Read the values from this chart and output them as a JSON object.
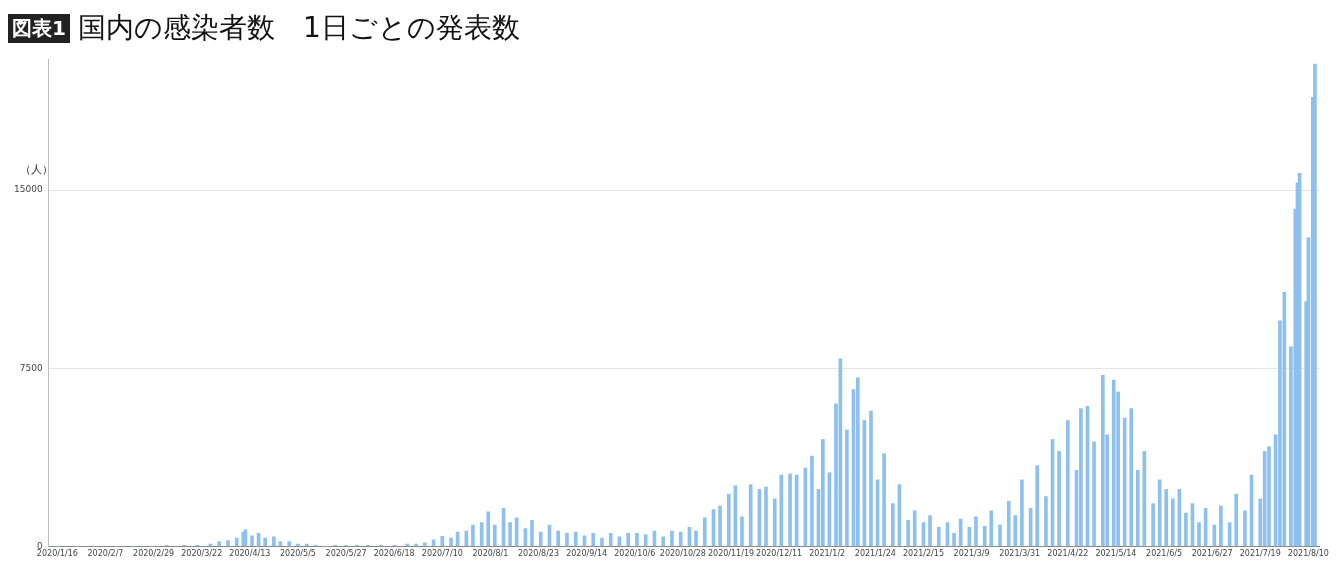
{
  "chart_data": {
    "type": "bar",
    "title": "国内の感染者数　1日ごとの発表数",
    "annotations": [
      "図表1"
    ],
    "ylabel": "（人）",
    "color": "#8ec0ef",
    "grid": "y",
    "xlim": [
      "2020-01-12",
      "2021-08-15"
    ],
    "xticks": [
      {
        "value": "2020-01-16",
        "label": "2020/1/16"
      },
      {
        "value": "2020-02-07",
        "label": "2020/2/7"
      },
      {
        "value": "2020-02-29",
        "label": "2020/2/29"
      },
      {
        "value": "2020-03-22",
        "label": "2020/3/22"
      },
      {
        "value": "2020-04-13",
        "label": "2020/4/13"
      },
      {
        "value": "2020-05-05",
        "label": "2020/5/5"
      },
      {
        "value": "2020-05-27",
        "label": "2020/5/27"
      },
      {
        "value": "2020-06-18",
        "label": "2020/6/18"
      },
      {
        "value": "2020-07-10",
        "label": "2020/7/10"
      },
      {
        "value": "2020-08-01",
        "label": "2020/8/1"
      },
      {
        "value": "2020-08-23",
        "label": "2020/8/23"
      },
      {
        "value": "2020-09-14",
        "label": "2020/9/14"
      },
      {
        "value": "2020-10-06",
        "label": "2020/10/6"
      },
      {
        "value": "2020-10-28",
        "label": "2020/10/28"
      },
      {
        "value": "2020-11-19",
        "label": "2020/11/19"
      },
      {
        "value": "2020-12-11",
        "label": "2020/12/11"
      },
      {
        "value": "2021-01-02",
        "label": "2021/1/2"
      },
      {
        "value": "2021-01-24",
        "label": "2021/1/24"
      },
      {
        "value": "2021-02-15",
        "label": "2021/2/15"
      },
      {
        "value": "2021-03-09",
        "label": "2021/3/9"
      },
      {
        "value": "2021-03-31",
        "label": "2021/3/31"
      },
      {
        "value": "2021-04-22",
        "label": "2021/4/22"
      },
      {
        "value": "2021-05-14",
        "label": "2021/5/14"
      },
      {
        "value": "2021-06-05",
        "label": "2021/6/5"
      },
      {
        "value": "2021-06-27",
        "label": "2021/6/27"
      },
      {
        "value": "2021-07-19",
        "label": "2021/7/19"
      },
      {
        "value": "2021-08-10",
        "label": "2021/8/10"
      }
    ],
    "ylim": [
      0,
      20500
    ],
    "yticks": [
      0,
      7500,
      15000
    ],
    "x": [
      "2020-01-16",
      "2020-01-25",
      "2020-02-03",
      "2020-02-12",
      "2020-02-20",
      "2020-02-28",
      "2020-03-06",
      "2020-03-14",
      "2020-03-20",
      "2020-03-26",
      "2020-03-30",
      "2020-04-03",
      "2020-04-07",
      "2020-04-10",
      "2020-04-11",
      "2020-04-14",
      "2020-04-17",
      "2020-04-20",
      "2020-04-24",
      "2020-04-27",
      "2020-05-01",
      "2020-05-05",
      "2020-05-09",
      "2020-05-13",
      "2020-05-18",
      "2020-05-22",
      "2020-05-27",
      "2020-06-01",
      "2020-06-06",
      "2020-06-12",
      "2020-06-18",
      "2020-06-24",
      "2020-06-28",
      "2020-07-02",
      "2020-07-06",
      "2020-07-10",
      "2020-07-14",
      "2020-07-17",
      "2020-07-21",
      "2020-07-24",
      "2020-07-28",
      "2020-07-31",
      "2020-08-03",
      "2020-08-07",
      "2020-08-10",
      "2020-08-13",
      "2020-08-17",
      "2020-08-20",
      "2020-08-24",
      "2020-08-28",
      "2020-09-01",
      "2020-09-05",
      "2020-09-09",
      "2020-09-13",
      "2020-09-17",
      "2020-09-21",
      "2020-09-25",
      "2020-09-29",
      "2020-10-03",
      "2020-10-07",
      "2020-10-11",
      "2020-10-15",
      "2020-10-19",
      "2020-10-23",
      "2020-10-27",
      "2020-10-31",
      "2020-11-03",
      "2020-11-07",
      "2020-11-11",
      "2020-11-14",
      "2020-11-18",
      "2020-11-21",
      "2020-11-24",
      "2020-11-28",
      "2020-12-02",
      "2020-12-05",
      "2020-12-09",
      "2020-12-12",
      "2020-12-16",
      "2020-12-19",
      "2020-12-23",
      "2020-12-26",
      "2020-12-29",
      "2020-12-31",
      "2021-01-03",
      "2021-01-06",
      "2021-01-08",
      "2021-01-11",
      "2021-01-14",
      "2021-01-16",
      "2021-01-19",
      "2021-01-22",
      "2021-01-25",
      "2021-01-28",
      "2021-02-01",
      "2021-02-04",
      "2021-02-08",
      "2021-02-11",
      "2021-02-15",
      "2021-02-18",
      "2021-02-22",
      "2021-02-26",
      "2021-03-01",
      "2021-03-04",
      "2021-03-08",
      "2021-03-11",
      "2021-03-15",
      "2021-03-18",
      "2021-03-22",
      "2021-03-26",
      "2021-03-29",
      "2021-04-01",
      "2021-04-05",
      "2021-04-08",
      "2021-04-12",
      "2021-04-15",
      "2021-04-18",
      "2021-04-22",
      "2021-04-26",
      "2021-04-28",
      "2021-05-01",
      "2021-05-04",
      "2021-05-08",
      "2021-05-10",
      "2021-05-13",
      "2021-05-15",
      "2021-05-18",
      "2021-05-21",
      "2021-05-24",
      "2021-05-27",
      "2021-05-31",
      "2021-06-03",
      "2021-06-06",
      "2021-06-09",
      "2021-06-12",
      "2021-06-15",
      "2021-06-18",
      "2021-06-21",
      "2021-06-24",
      "2021-06-28",
      "2021-07-01",
      "2021-07-05",
      "2021-07-08",
      "2021-07-12",
      "2021-07-15",
      "2021-07-19",
      "2021-07-21",
      "2021-07-23",
      "2021-07-26",
      "2021-07-28",
      "2021-07-30",
      "2021-08-02",
      "2021-08-04",
      "2021-08-05",
      "2021-08-06",
      "2021-08-09",
      "2021-08-10",
      "2021-08-12",
      "2021-08-13"
    ],
    "values": [
      0,
      0,
      0,
      0,
      0,
      0,
      50,
      50,
      50,
      100,
      200,
      250,
      350,
      600,
      700,
      450,
      550,
      350,
      400,
      200,
      200,
      100,
      100,
      50,
      0,
      50,
      50,
      50,
      50,
      50,
      50,
      100,
      100,
      150,
      280,
      420,
      350,
      600,
      650,
      900,
      1000,
      1450,
      900,
      1600,
      1000,
      1200,
      750,
      1100,
      600,
      900,
      650,
      550,
      600,
      450,
      550,
      350,
      550,
      400,
      550,
      550,
      500,
      650,
      400,
      650,
      600,
      800,
      650,
      1200,
      1550,
      1700,
      2200,
      2550,
      1250,
      2600,
      2400,
      2500,
      2000,
      3000,
      3050,
      3000,
      3300,
      3800,
      2400,
      4500,
      3100,
      6000,
      7900,
      4900,
      6600,
      7100,
      5300,
      5700,
      2800,
      3900,
      1800,
      2600,
      1100,
      1500,
      1000,
      1300,
      800,
      1000,
      550,
      1150,
      800,
      1250,
      850,
      1500,
      900,
      1900,
      1300,
      2800,
      1600,
      3400,
      2100,
      4500,
      4000,
      5300,
      3200,
      5800,
      5900,
      4400,
      7200,
      4700,
      7000,
      6500,
      5400,
      5800,
      3200,
      4000,
      1800,
      2800,
      2400,
      2000,
      2400,
      1400,
      1800,
      1000,
      1600,
      900,
      1700,
      1000,
      2200,
      1500,
      3000,
      2000,
      4000,
      4200,
      4700,
      9500,
      10700,
      8400,
      14200,
      15300,
      15700,
      10300,
      13000,
      18900,
      20300
    ]
  }
}
